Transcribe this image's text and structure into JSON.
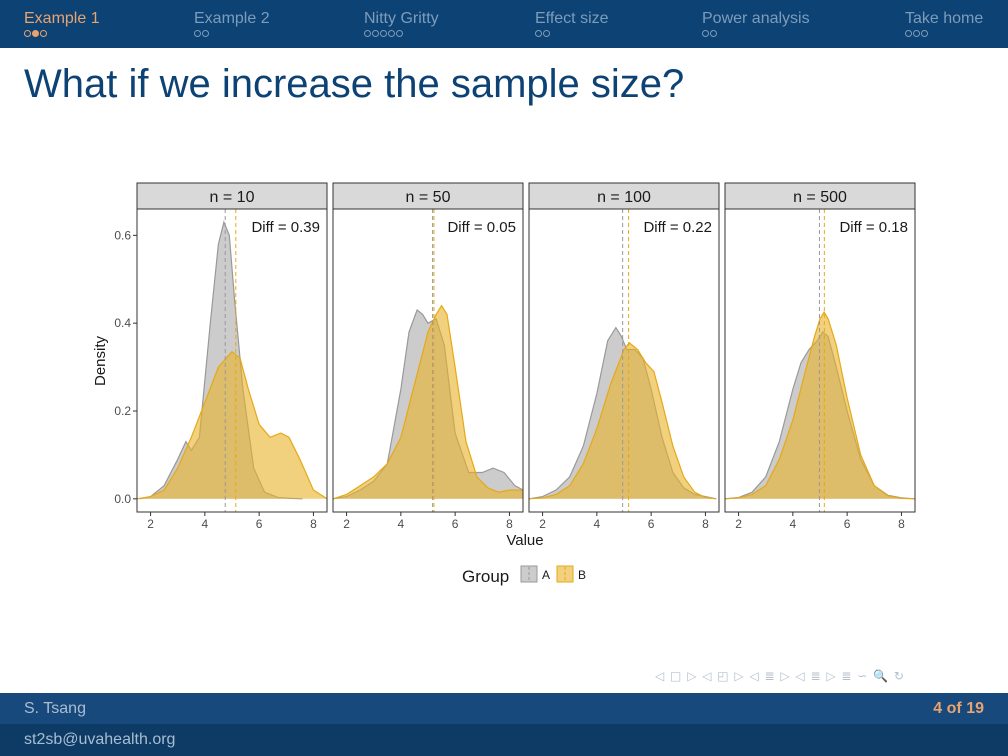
{
  "nav": {
    "sections": [
      {
        "label": "Example 1",
        "dots": 3,
        "current_dot": 1,
        "active": true
      },
      {
        "label": "Example 2",
        "dots": 2,
        "current_dot": -1,
        "active": false
      },
      {
        "label": "Nitty Gritty",
        "dots": 5,
        "current_dot": -1,
        "active": false
      },
      {
        "label": "Effect size",
        "dots": 2,
        "current_dot": -1,
        "active": false
      },
      {
        "label": "Power analysis",
        "dots": 2,
        "current_dot": -1,
        "active": false
      },
      {
        "label": "Take home",
        "dots": 3,
        "current_dot": -1,
        "active": false
      }
    ]
  },
  "frame": {
    "title": "What if we increase the sample size?"
  },
  "footer": {
    "author": "S. Tsang",
    "email": "st2sb@uvahealth.org",
    "page_current": "4",
    "page_sep": "of",
    "page_total": "19"
  },
  "navsymbols": "◁ □ ▷ ◁ ◰ ▷ ◁ ≣ ▷ ◁ ≣ ▷ ≣ ∽ 🔍 ↻",
  "chart_data": {
    "type": "area",
    "xlabel": "Value",
    "ylabel": "Density",
    "xlim": [
      1.5,
      8.5
    ],
    "ylim": [
      -0.03,
      0.66
    ],
    "x_ticks": [
      2,
      4,
      6,
      8
    ],
    "y_ticks": [
      0.0,
      0.2,
      0.4,
      0.6
    ],
    "y_tick_labels": [
      "0.0",
      "0.2",
      "0.4",
      "0.6"
    ],
    "legend": {
      "title": "Group",
      "position": "bottom",
      "entries": [
        "A",
        "B"
      ]
    },
    "colors": {
      "A": "#999999",
      "B": "#e6a817"
    },
    "fill_colors": {
      "A": "rgba(153,153,153,0.5)",
      "B": "rgba(232,178,40,0.6)"
    },
    "grid": false,
    "panels": [
      {
        "strip": "n = 10",
        "annotation": "Diff = 0.39",
        "mean_A": 4.75,
        "mean_B": 5.14,
        "series": [
          {
            "name": "A",
            "x": [
              1.6,
              2.0,
              2.5,
              3.0,
              3.3,
              3.5,
              3.8,
              4.2,
              4.5,
              4.7,
              4.9,
              5.1,
              5.4,
              5.8,
              6.2,
              6.7,
              7.2,
              7.6
            ],
            "y": [
              0.0,
              0.005,
              0.03,
              0.09,
              0.13,
              0.11,
              0.14,
              0.4,
              0.58,
              0.63,
              0.6,
              0.45,
              0.25,
              0.07,
              0.015,
              0.003,
              0.001,
              0.0
            ]
          },
          {
            "name": "B",
            "x": [
              1.5,
              2.0,
              2.5,
              3.0,
              3.5,
              4.0,
              4.5,
              5.0,
              5.3,
              5.6,
              6.0,
              6.4,
              6.8,
              7.1,
              7.5,
              8.0,
              8.5
            ],
            "y": [
              0.0,
              0.005,
              0.02,
              0.07,
              0.14,
              0.22,
              0.3,
              0.335,
              0.32,
              0.25,
              0.17,
              0.14,
              0.15,
              0.14,
              0.09,
              0.02,
              0.0
            ]
          }
        ]
      },
      {
        "strip": "n = 50",
        "annotation": "Diff = 0.05",
        "mean_A": 5.17,
        "mean_B": 5.22,
        "series": [
          {
            "name": "A",
            "x": [
              1.5,
              2.0,
              2.5,
              3.0,
              3.5,
              4.0,
              4.3,
              4.6,
              4.8,
              5.0,
              5.3,
              5.6,
              6.0,
              6.5,
              7.0,
              7.4,
              7.8,
              8.2,
              8.5
            ],
            "y": [
              0.0,
              0.005,
              0.02,
              0.04,
              0.08,
              0.25,
              0.38,
              0.43,
              0.42,
              0.4,
              0.41,
              0.35,
              0.15,
              0.06,
              0.06,
              0.07,
              0.06,
              0.03,
              0.02
            ]
          },
          {
            "name": "B",
            "x": [
              1.5,
              2.0,
              2.5,
              3.0,
              3.5,
              4.0,
              4.5,
              5.0,
              5.3,
              5.5,
              5.7,
              6.0,
              6.4,
              6.8,
              7.2,
              7.6,
              8.0,
              8.5
            ],
            "y": [
              0.0,
              0.01,
              0.03,
              0.05,
              0.08,
              0.14,
              0.26,
              0.38,
              0.42,
              0.44,
              0.42,
              0.3,
              0.13,
              0.05,
              0.025,
              0.015,
              0.02,
              0.02
            ]
          }
        ]
      },
      {
        "strip": "n = 100",
        "annotation": "Diff = 0.22",
        "mean_A": 4.95,
        "mean_B": 5.17,
        "series": [
          {
            "name": "A",
            "x": [
              1.5,
              2.0,
              2.5,
              3.0,
              3.5,
              4.0,
              4.4,
              4.7,
              4.9,
              5.1,
              5.4,
              5.7,
              6.0,
              6.4,
              6.8,
              7.2,
              7.6,
              8.0,
              8.4
            ],
            "y": [
              0.0,
              0.005,
              0.02,
              0.05,
              0.12,
              0.24,
              0.36,
              0.39,
              0.37,
              0.34,
              0.34,
              0.32,
              0.25,
              0.14,
              0.06,
              0.025,
              0.01,
              0.005,
              0.0
            ]
          },
          {
            "name": "B",
            "x": [
              1.5,
              2.0,
              2.5,
              3.0,
              3.5,
              4.0,
              4.5,
              5.0,
              5.2,
              5.5,
              5.8,
              6.1,
              6.4,
              6.8,
              7.2,
              7.6,
              8.0,
              8.4
            ],
            "y": [
              0.0,
              0.002,
              0.01,
              0.03,
              0.08,
              0.16,
              0.26,
              0.34,
              0.355,
              0.34,
              0.31,
              0.29,
              0.22,
              0.12,
              0.05,
              0.015,
              0.003,
              0.0
            ]
          }
        ]
      },
      {
        "strip": "n = 500",
        "annotation": "Diff = 0.18",
        "mean_A": 4.98,
        "mean_B": 5.16,
        "series": [
          {
            "name": "A",
            "x": [
              1.5,
              2.0,
              2.5,
              3.0,
              3.5,
              4.0,
              4.3,
              4.6,
              4.9,
              5.1,
              5.3,
              5.6,
              6.0,
              6.5,
              7.0,
              7.5,
              8.0,
              8.5
            ],
            "y": [
              0.0,
              0.003,
              0.015,
              0.05,
              0.13,
              0.25,
              0.31,
              0.34,
              0.36,
              0.38,
              0.37,
              0.3,
              0.2,
              0.09,
              0.03,
              0.008,
              0.002,
              0.0
            ]
          },
          {
            "name": "B",
            "x": [
              1.5,
              2.0,
              2.5,
              3.0,
              3.5,
              4.0,
              4.5,
              4.8,
              5.0,
              5.15,
              5.3,
              5.6,
              6.0,
              6.5,
              7.0,
              7.5,
              8.0,
              8.5
            ],
            "y": [
              0.0,
              0.002,
              0.01,
              0.03,
              0.09,
              0.18,
              0.3,
              0.37,
              0.41,
              0.425,
              0.41,
              0.35,
              0.23,
              0.1,
              0.03,
              0.007,
              0.001,
              0.0
            ]
          }
        ]
      }
    ]
  }
}
